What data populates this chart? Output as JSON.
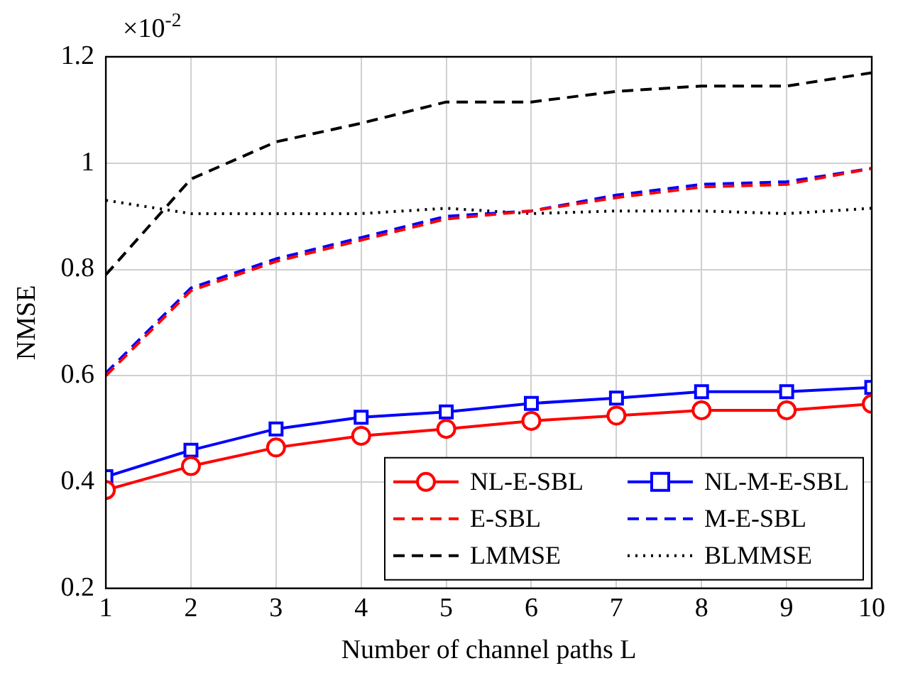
{
  "chart_data": {
    "type": "line",
    "xlabel": "Number of channel paths L",
    "ylabel": "NMSE",
    "annotations": [
      "×10$^{-2}$"
    ],
    "x": [
      1,
      2,
      3,
      4,
      5,
      6,
      7,
      8,
      9,
      10
    ],
    "xlim": [
      1,
      10
    ],
    "xticks": [
      1,
      2,
      3,
      4,
      5,
      6,
      7,
      8,
      9,
      10
    ],
    "ylim": [
      0.2,
      1.2
    ],
    "yticks": [
      0.2,
      0.4,
      0.6,
      0.8,
      1,
      1.2
    ],
    "grid": true,
    "legend": "bottom right",
    "series": [
      {
        "name": "NL-E-SBL",
        "color": "#ff0000",
        "marker": "circle",
        "line_style": "solid",
        "values": [
          0.385,
          0.43,
          0.465,
          0.487,
          0.5,
          0.515,
          0.525,
          0.535,
          0.535,
          0.547
        ]
      },
      {
        "name": "NL-M-E-SBL",
        "color": "#0000ff",
        "marker": "square",
        "line_style": "solid",
        "values": [
          0.41,
          0.46,
          0.5,
          0.522,
          0.532,
          0.548,
          0.558,
          0.57,
          0.57,
          0.578
        ]
      },
      {
        "name": "E-SBL",
        "color": "#ff0000",
        "marker": "none",
        "line_style": "dashed",
        "values": [
          0.6,
          0.76,
          0.815,
          0.855,
          0.895,
          0.91,
          0.935,
          0.955,
          0.96,
          0.99
        ]
      },
      {
        "name": "M-E-SBL",
        "color": "#0000ff",
        "marker": "none",
        "line_style": "dashed",
        "values": [
          0.605,
          0.765,
          0.82,
          0.86,
          0.9,
          0.91,
          0.94,
          0.96,
          0.965,
          0.99
        ]
      },
      {
        "name": "LMMSE",
        "color": "#000000",
        "marker": "none",
        "line_style": "dashed",
        "values": [
          0.79,
          0.97,
          1.04,
          1.075,
          1.115,
          1.115,
          1.135,
          1.145,
          1.145,
          1.17
        ]
      },
      {
        "name": "BLMMSE",
        "color": "#000000",
        "marker": "none",
        "line_style": "dotted",
        "values": [
          0.93,
          0.905,
          0.905,
          0.905,
          0.915,
          0.905,
          0.91,
          0.91,
          0.905,
          0.915
        ]
      }
    ]
  }
}
